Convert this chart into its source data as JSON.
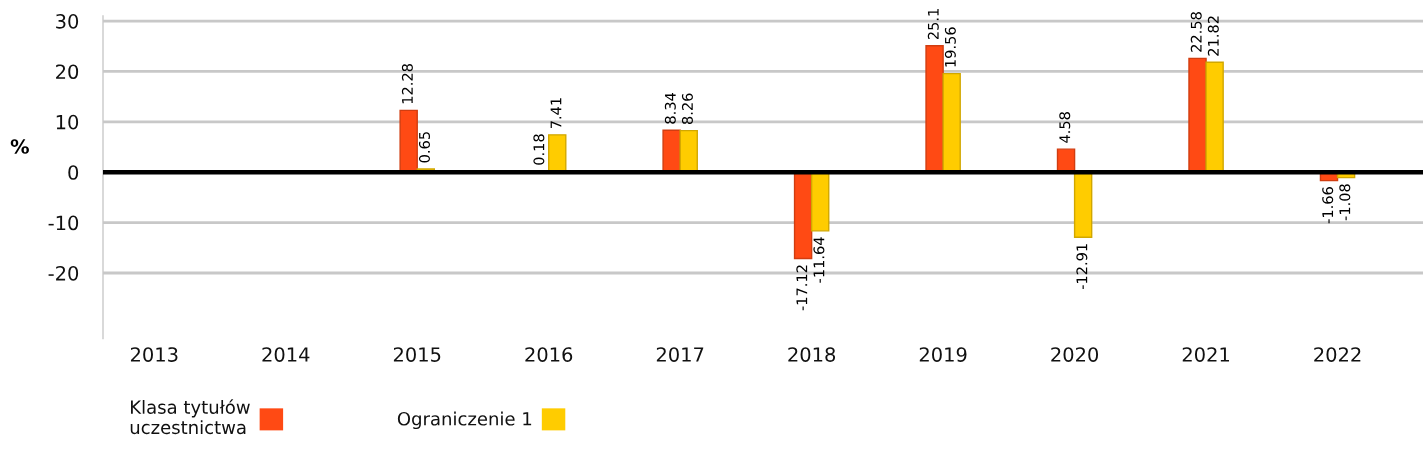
{
  "chart_data": {
    "type": "bar",
    "ylabel": "%",
    "categories": [
      "2013",
      "2014",
      "2015",
      "2016",
      "2017",
      "2018",
      "2019",
      "2020",
      "2021",
      "2022"
    ],
    "series": [
      {
        "name": "Klasa tytułów\nuczestnictwa",
        "color": "#ff4a14",
        "values": [
          null,
          null,
          12.28,
          0.18,
          8.34,
          -17.12,
          25.1,
          4.58,
          22.58,
          -1.66
        ]
      },
      {
        "name": "Ograniczenie 1",
        "color": "#ffcc00",
        "values": [
          null,
          null,
          0.65,
          7.41,
          8.26,
          -11.64,
          19.56,
          -12.91,
          21.82,
          -1.08
        ]
      }
    ],
    "ylim": [
      -33,
      31
    ],
    "yticks": [
      -20,
      -10,
      0,
      10,
      20,
      30
    ],
    "grid": "y",
    "legend": "bottom",
    "data_labels": true,
    "ref_lines": [
      {
        "axis": "y",
        "value": 0,
        "color": "#000000"
      }
    ]
  }
}
